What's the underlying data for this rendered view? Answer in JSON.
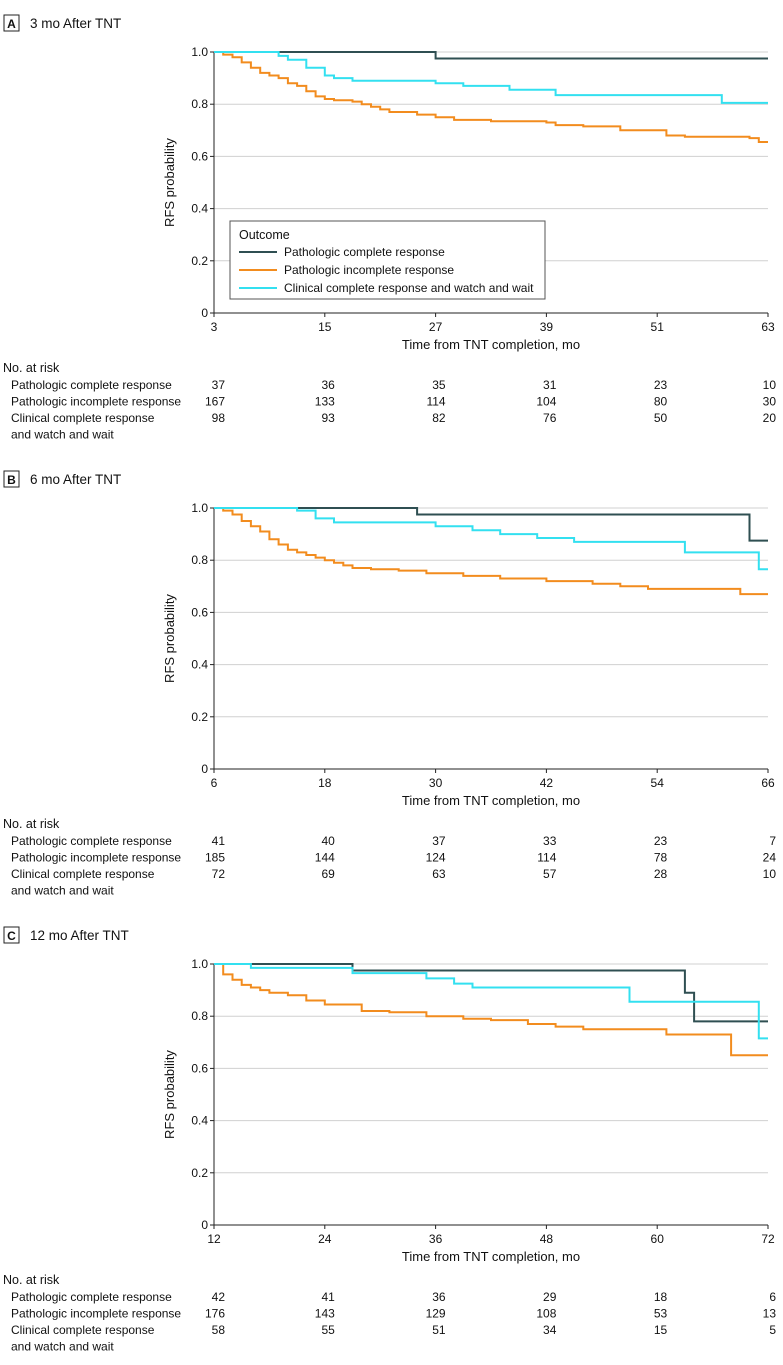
{
  "colors": {
    "pcr": "#2f4f52",
    "pir": "#f28c1e",
    "ccr": "#33e0f0",
    "grid": "#d0d0d0",
    "axis": "#222222"
  },
  "legend": {
    "title": "Outcome",
    "entries": [
      {
        "key": "pcr",
        "label": "Pathologic complete response"
      },
      {
        "key": "pir",
        "label": "Pathologic incomplete response"
      },
      {
        "key": "ccr",
        "label": "Clinical complete response and watch and wait"
      }
    ]
  },
  "chart_data": [
    {
      "type": "line",
      "panel_letter": "A",
      "title": "3 mo After TNT",
      "xlabel": "Time from TNT completion, mo",
      "ylabel": "RFS probability",
      "xlim": [
        3,
        63
      ],
      "ylim": [
        0,
        1
      ],
      "xticks": [
        "3",
        "15",
        "27",
        "39",
        "51",
        "63"
      ],
      "yticks": [
        "0",
        "0.2",
        "0.4",
        "0.6",
        "0.8",
        "1.0"
      ],
      "show_legend": true,
      "series": [
        {
          "key": "pcr",
          "name": "Pathologic complete response",
          "x": [
            3,
            27,
            63
          ],
          "y": [
            1.0,
            0.975,
            0.975
          ]
        },
        {
          "key": "pir",
          "name": "Pathologic incomplete response",
          "x": [
            3,
            4,
            5,
            6,
            7,
            8,
            9,
            10,
            11,
            12,
            13,
            14,
            15,
            16,
            18,
            19,
            20,
            21,
            22,
            25,
            27,
            29,
            33,
            39,
            40,
            43,
            47,
            52,
            54,
            61,
            62,
            63
          ],
          "y": [
            1.0,
            0.99,
            0.98,
            0.96,
            0.94,
            0.92,
            0.91,
            0.9,
            0.88,
            0.87,
            0.85,
            0.83,
            0.82,
            0.815,
            0.81,
            0.8,
            0.79,
            0.78,
            0.77,
            0.76,
            0.75,
            0.74,
            0.735,
            0.73,
            0.72,
            0.715,
            0.7,
            0.68,
            0.675,
            0.67,
            0.655,
            0.655
          ]
        },
        {
          "key": "ccr",
          "name": "Clinical complete response and watch and wait",
          "x": [
            3,
            8,
            10,
            11,
            13,
            15,
            16,
            18,
            27,
            30,
            35,
            40,
            58,
            63
          ],
          "y": [
            1.0,
            1.0,
            0.985,
            0.97,
            0.94,
            0.91,
            0.9,
            0.89,
            0.88,
            0.87,
            0.855,
            0.835,
            0.805,
            0.805
          ]
        }
      ],
      "risk_table": {
        "header": "No. at risk",
        "rows": [
          {
            "label": [
              "Pathologic complete response"
            ],
            "values": [
              "37",
              "36",
              "35",
              "31",
              "23",
              "10"
            ]
          },
          {
            "label": [
              "Pathologic incomplete response"
            ],
            "values": [
              "167",
              "133",
              "114",
              "104",
              "80",
              "30"
            ]
          },
          {
            "label": [
              "Clinical complete response",
              "and watch and wait"
            ],
            "values": [
              "98",
              "93",
              "82",
              "76",
              "50",
              "20"
            ]
          }
        ]
      }
    },
    {
      "type": "line",
      "panel_letter": "B",
      "title": "6 mo After TNT",
      "xlabel": "Time from TNT completion, mo",
      "ylabel": "RFS probability",
      "xlim": [
        6,
        66
      ],
      "ylim": [
        0,
        1
      ],
      "xticks": [
        "6",
        "18",
        "30",
        "42",
        "54",
        "66"
      ],
      "yticks": [
        "0",
        "0.2",
        "0.4",
        "0.6",
        "0.8",
        "1.0"
      ],
      "show_legend": false,
      "series": [
        {
          "key": "pcr",
          "name": "Pathologic complete response",
          "x": [
            6,
            28,
            64,
            66
          ],
          "y": [
            1.0,
            0.975,
            0.875,
            0.875
          ]
        },
        {
          "key": "pir",
          "name": "Pathologic incomplete response",
          "x": [
            6,
            7,
            8,
            9,
            10,
            11,
            12,
            13,
            14,
            15,
            16,
            17,
            18,
            19,
            20,
            21,
            23,
            26,
            29,
            33,
            37,
            42,
            47,
            50,
            53,
            63,
            66
          ],
          "y": [
            1.0,
            0.99,
            0.975,
            0.95,
            0.93,
            0.91,
            0.88,
            0.86,
            0.84,
            0.83,
            0.82,
            0.81,
            0.8,
            0.79,
            0.78,
            0.77,
            0.765,
            0.76,
            0.75,
            0.74,
            0.73,
            0.72,
            0.71,
            0.7,
            0.69,
            0.67,
            0.67
          ]
        },
        {
          "key": "ccr",
          "name": "Clinical complete response and watch and wait",
          "x": [
            6,
            15,
            17,
            19,
            30,
            34,
            37,
            41,
            45,
            57,
            65,
            66
          ],
          "y": [
            1.0,
            0.99,
            0.96,
            0.945,
            0.93,
            0.915,
            0.9,
            0.885,
            0.87,
            0.83,
            0.765,
            0.765
          ]
        }
      ],
      "risk_table": {
        "header": "No. at risk",
        "rows": [
          {
            "label": [
              "Pathologic complete response"
            ],
            "values": [
              "41",
              "40",
              "37",
              "33",
              "23",
              "7"
            ]
          },
          {
            "label": [
              "Pathologic incomplete response"
            ],
            "values": [
              "185",
              "144",
              "124",
              "114",
              "78",
              "24"
            ]
          },
          {
            "label": [
              "Clinical complete response",
              "and watch and wait"
            ],
            "values": [
              "72",
              "69",
              "63",
              "57",
              "28",
              "10"
            ]
          }
        ]
      }
    },
    {
      "type": "line",
      "panel_letter": "C",
      "title": "12 mo After TNT",
      "xlabel": "Time from TNT completion, mo",
      "ylabel": "RFS probability",
      "xlim": [
        12,
        72
      ],
      "ylim": [
        0,
        1
      ],
      "xticks": [
        "12",
        "24",
        "36",
        "48",
        "60",
        "72"
      ],
      "yticks": [
        "0",
        "0.2",
        "0.4",
        "0.6",
        "0.8",
        "1.0"
      ],
      "show_legend": false,
      "series": [
        {
          "key": "pcr",
          "name": "Pathologic complete response",
          "x": [
            12,
            27,
            63,
            64,
            72
          ],
          "y": [
            1.0,
            0.975,
            0.89,
            0.78,
            0.78
          ]
        },
        {
          "key": "pir",
          "name": "Pathologic incomplete response",
          "x": [
            12,
            13,
            14,
            15,
            16,
            17,
            18,
            20,
            22,
            24,
            28,
            31,
            35,
            39,
            42,
            46,
            49,
            52,
            61,
            68,
            72
          ],
          "y": [
            1.0,
            0.96,
            0.94,
            0.92,
            0.91,
            0.9,
            0.89,
            0.88,
            0.86,
            0.845,
            0.82,
            0.815,
            0.8,
            0.79,
            0.785,
            0.77,
            0.76,
            0.75,
            0.73,
            0.65,
            0.65
          ]
        },
        {
          "key": "ccr",
          "name": "Clinical complete response and watch and wait",
          "x": [
            12,
            16,
            27,
            35,
            38,
            40,
            57,
            71,
            72
          ],
          "y": [
            1.0,
            0.985,
            0.965,
            0.945,
            0.925,
            0.91,
            0.855,
            0.715,
            0.715
          ]
        }
      ],
      "risk_table": {
        "header": "No. at risk",
        "rows": [
          {
            "label": [
              "Pathologic complete response"
            ],
            "values": [
              "42",
              "41",
              "36",
              "29",
              "18",
              "6"
            ]
          },
          {
            "label": [
              "Pathologic incomplete response"
            ],
            "values": [
              "176",
              "143",
              "129",
              "108",
              "53",
              "13"
            ]
          },
          {
            "label": [
              "Clinical complete response",
              "and watch and wait"
            ],
            "values": [
              "58",
              "55",
              "51",
              "34",
              "15",
              "5"
            ]
          }
        ]
      }
    }
  ]
}
